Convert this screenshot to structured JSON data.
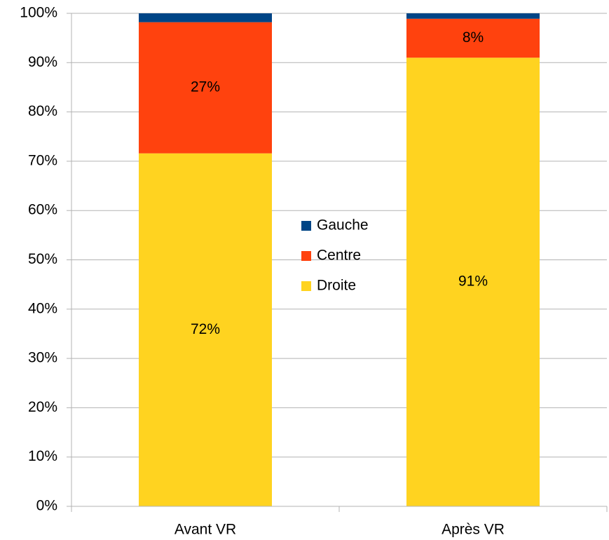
{
  "chart_data": {
    "type": "stacked_bar",
    "categories": [
      "Avant VR",
      "Après VR"
    ],
    "series": [
      {
        "name": "Droite",
        "color": "#ffd320",
        "values": [
          71.6,
          91.0
        ],
        "value_labels": [
          "72%",
          "91%"
        ]
      },
      {
        "name": "Centre",
        "color": "#ff420e",
        "values": [
          26.6,
          7.9
        ],
        "value_labels": [
          "27%",
          "8%"
        ]
      },
      {
        "name": "Gauche",
        "color": "#004586",
        "values": [
          1.8,
          1.1
        ]
      }
    ],
    "ylim": [
      0,
      100
    ],
    "yticks": [
      {
        "value": 0,
        "label": "0%"
      },
      {
        "value": 10,
        "label": "10%"
      },
      {
        "value": 20,
        "label": "20%"
      },
      {
        "value": 30,
        "label": "30%"
      },
      {
        "value": 40,
        "label": "40%"
      },
      {
        "value": 50,
        "label": "50%"
      },
      {
        "value": 60,
        "label": "60%"
      },
      {
        "value": 70,
        "label": "70%"
      },
      {
        "value": 80,
        "label": "80%"
      },
      {
        "value": 90,
        "label": "90%"
      },
      {
        "value": 100,
        "label": "100%"
      }
    ],
    "grid": true,
    "legend": "center"
  }
}
